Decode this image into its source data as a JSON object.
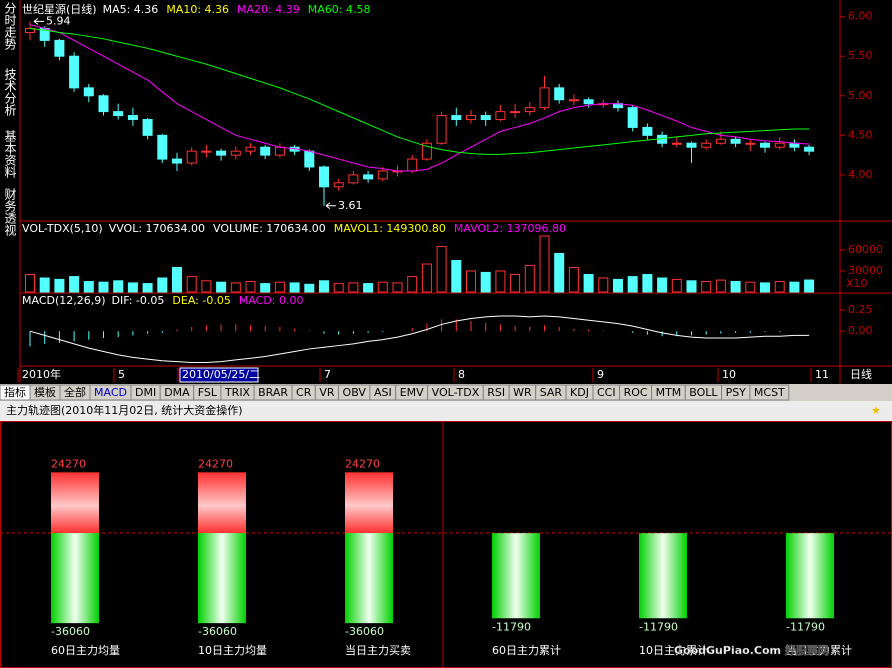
{
  "side_tabs": [
    "分时走势",
    "技术分析",
    "基本资料",
    "财务透视"
  ],
  "kline": {
    "title": "世纪星源(日线)",
    "indicators": [
      {
        "text": "MA5: 4.36",
        "color": "#ffffff"
      },
      {
        "text": "MA10: 4.36",
        "color": "#ffff00"
      },
      {
        "text": "MA20: 4.39",
        "color": "#ff00ff"
      },
      {
        "text": "MA60: 4.58",
        "color": "#00ff00"
      }
    ],
    "ylim": [
      3.43,
      6.16
    ],
    "yticks": [
      {
        "value": 6,
        "label": "6.00"
      },
      {
        "value": 5.5,
        "label": "5.50"
      },
      {
        "value": 5,
        "label": "5.00"
      },
      {
        "value": 4.5,
        "label": "4.50"
      },
      {
        "value": 4,
        "label": "4.00"
      }
    ],
    "high_mark": 5.94,
    "low_mark": 3.61,
    "up_color": "#ff3232",
    "down_color": "#54ffff",
    "candles": [
      [
        5.8,
        5.94,
        5.7,
        5.85
      ],
      [
        5.85,
        5.88,
        5.62,
        5.7
      ],
      [
        5.7,
        5.72,
        5.45,
        5.5
      ],
      [
        5.5,
        5.55,
        5.05,
        5.1
      ],
      [
        5.1,
        5.15,
        4.92,
        5.0
      ],
      [
        5.0,
        5.02,
        4.75,
        4.8
      ],
      [
        4.8,
        4.9,
        4.7,
        4.75
      ],
      [
        4.75,
        4.85,
        4.62,
        4.7
      ],
      [
        4.7,
        4.72,
        4.45,
        4.5
      ],
      [
        4.5,
        4.52,
        4.15,
        4.2
      ],
      [
        4.2,
        4.28,
        4.05,
        4.15
      ],
      [
        4.15,
        4.35,
        4.12,
        4.3
      ],
      [
        4.3,
        4.38,
        4.22,
        4.3
      ],
      [
        4.3,
        4.33,
        4.18,
        4.25
      ],
      [
        4.25,
        4.36,
        4.2,
        4.3
      ],
      [
        4.3,
        4.4,
        4.25,
        4.35
      ],
      [
        4.35,
        4.38,
        4.2,
        4.25
      ],
      [
        4.25,
        4.4,
        4.22,
        4.35
      ],
      [
        4.35,
        4.38,
        4.25,
        4.3
      ],
      [
        4.3,
        4.32,
        4.05,
        4.1
      ],
      [
        4.1,
        4.12,
        3.61,
        3.85
      ],
      [
        3.85,
        3.95,
        3.8,
        3.9
      ],
      [
        3.9,
        4.05,
        3.88,
        4.0
      ],
      [
        4.0,
        4.05,
        3.9,
        3.95
      ],
      [
        3.95,
        4.1,
        3.92,
        4.05
      ],
      [
        4.05,
        4.12,
        3.98,
        4.05
      ],
      [
        4.05,
        4.25,
        4.02,
        4.2
      ],
      [
        4.2,
        4.45,
        4.18,
        4.4
      ],
      [
        4.4,
        4.8,
        4.38,
        4.75
      ],
      [
        4.75,
        4.85,
        4.62,
        4.7
      ],
      [
        4.7,
        4.82,
        4.65,
        4.75
      ],
      [
        4.75,
        4.8,
        4.62,
        4.7
      ],
      [
        4.7,
        4.88,
        4.68,
        4.8
      ],
      [
        4.8,
        4.9,
        4.72,
        4.8
      ],
      [
        4.8,
        4.92,
        4.75,
        4.85
      ],
      [
        4.85,
        5.25,
        4.82,
        5.1
      ],
      [
        5.1,
        5.15,
        4.9,
        4.95
      ],
      [
        4.95,
        5.02,
        4.88,
        4.95
      ],
      [
        4.95,
        4.98,
        4.85,
        4.9
      ],
      [
        4.9,
        4.95,
        4.85,
        4.9
      ],
      [
        4.9,
        4.94,
        4.8,
        4.85
      ],
      [
        4.85,
        4.88,
        4.55,
        4.6
      ],
      [
        4.6,
        4.65,
        4.45,
        4.5
      ],
      [
        4.5,
        4.55,
        4.35,
        4.4
      ],
      [
        4.4,
        4.48,
        4.35,
        4.4
      ],
      [
        4.4,
        4.42,
        4.15,
        4.35
      ],
      [
        4.35,
        4.45,
        4.32,
        4.4
      ],
      [
        4.4,
        4.55,
        4.38,
        4.45
      ],
      [
        4.45,
        4.48,
        4.35,
        4.4
      ],
      [
        4.4,
        4.45,
        4.3,
        4.4
      ],
      [
        4.4,
        4.42,
        4.28,
        4.35
      ],
      [
        4.35,
        4.48,
        4.32,
        4.4
      ],
      [
        4.4,
        4.45,
        4.3,
        4.35
      ],
      [
        4.35,
        4.38,
        4.25,
        4.3
      ]
    ],
    "ma_lines": [
      {
        "color": "#ff00ff",
        "values": [
          5.9,
          5.85,
          5.8,
          5.7,
          5.6,
          5.5,
          5.4,
          5.3,
          5.2,
          5.05,
          4.9,
          4.8,
          4.7,
          4.6,
          4.5,
          4.45,
          4.4,
          4.35,
          4.33,
          4.3,
          4.25,
          4.2,
          4.15,
          4.1,
          4.08,
          4.05,
          4.05,
          4.07,
          4.15,
          4.25,
          4.35,
          4.45,
          4.55,
          4.6,
          4.65,
          4.72,
          4.8,
          4.85,
          4.88,
          4.9,
          4.9,
          4.88,
          4.82,
          4.75,
          4.68,
          4.6,
          4.55,
          4.5,
          4.48,
          4.45,
          4.43,
          4.42,
          4.4,
          4.39
        ]
      },
      {
        "color": "#00ff00",
        "values": [
          5.85,
          5.83,
          5.8,
          5.78,
          5.75,
          5.72,
          5.68,
          5.64,
          5.6,
          5.55,
          5.5,
          5.45,
          5.4,
          5.34,
          5.28,
          5.22,
          5.16,
          5.1,
          5.03,
          4.96,
          4.88,
          4.8,
          4.72,
          4.64,
          4.56,
          4.48,
          4.42,
          4.36,
          4.32,
          4.29,
          4.27,
          4.26,
          4.26,
          4.27,
          4.28,
          4.3,
          4.32,
          4.34,
          4.36,
          4.38,
          4.4,
          4.42,
          4.44,
          4.46,
          4.48,
          4.5,
          4.52,
          4.53,
          4.54,
          4.55,
          4.56,
          4.57,
          4.58,
          4.58
        ]
      }
    ]
  },
  "volume": {
    "title": "VOL-TDX(5,10)",
    "indicators": [
      {
        "text": "VVOL: 170634.00",
        "color": "#ffffff"
      },
      {
        "text": "VOLUME: 170634.00",
        "color": "#ffffff"
      },
      {
        "text": "MAVOL1: 149300.80",
        "color": "#ffff00"
      },
      {
        "text": "MAVOL2: 137096.80",
        "color": "#ff00ff"
      }
    ],
    "ylim": [
      0,
      100000
    ],
    "yticks": [
      60000,
      30000
    ],
    "multiplier": "X10",
    "values": [
      25000,
      20000,
      18000,
      22000,
      15000,
      14000,
      16000,
      13000,
      12000,
      20000,
      35000,
      22000,
      16000,
      14000,
      13000,
      15000,
      12000,
      14000,
      13000,
      11000,
      16000,
      12000,
      13000,
      12000,
      14000,
      13000,
      22000,
      40000,
      65000,
      45000,
      30000,
      28000,
      30000,
      25000,
      38000,
      80000,
      55000,
      35000,
      25000,
      20000,
      18000,
      22000,
      25000,
      20000,
      18000,
      16000,
      15000,
      17000,
      15000,
      14000,
      13000,
      15000,
      14000,
      17063
    ]
  },
  "macd": {
    "title": "MACD(12,26,9)",
    "indicators": [
      {
        "text": "DIF: -0.05",
        "color": "#ffffff"
      },
      {
        "text": "DEA: -0.05",
        "color": "#ffff00"
      },
      {
        "text": "MACD: 0.00",
        "color": "#ff00ff"
      }
    ],
    "ylim": [
      -0.4,
      0.44
    ],
    "yticks": [
      {
        "value": 0.25,
        "label": "0.25"
      },
      {
        "value": 0,
        "label": "0.00"
      }
    ],
    "hist": [
      -0.18,
      -0.15,
      -0.14,
      -0.12,
      -0.1,
      -0.08,
      -0.07,
      -0.05,
      -0.03,
      -0.02,
      0.02,
      0.05,
      0.07,
      0.08,
      0.08,
      0.07,
      0.06,
      0.05,
      0.03,
      0.01,
      -0.03,
      -0.04,
      -0.03,
      -0.02,
      -0.01,
      0.0,
      0.04,
      0.09,
      0.14,
      0.14,
      0.12,
      0.1,
      0.08,
      0.06,
      0.05,
      0.07,
      0.05,
      0.03,
      0.02,
      0.01,
      0.0,
      -0.02,
      -0.04,
      -0.06,
      -0.06,
      -0.05,
      -0.04,
      -0.03,
      -0.02,
      -0.02,
      -0.01,
      -0.01,
      0.0,
      0.0
    ],
    "dif": [
      0.0,
      -0.05,
      -0.1,
      -0.15,
      -0.2,
      -0.24,
      -0.28,
      -0.31,
      -0.33,
      -0.35,
      -0.36,
      -0.37,
      -0.37,
      -0.36,
      -0.34,
      -0.32,
      -0.3,
      -0.27,
      -0.24,
      -0.21,
      -0.19,
      -0.17,
      -0.15,
      -0.12,
      -0.1,
      -0.07,
      -0.03,
      0.02,
      0.08,
      0.12,
      0.15,
      0.17,
      0.18,
      0.18,
      0.17,
      0.18,
      0.17,
      0.15,
      0.13,
      0.11,
      0.09,
      0.06,
      0.02,
      -0.02,
      -0.05,
      -0.07,
      -0.08,
      -0.08,
      -0.08,
      -0.07,
      -0.06,
      -0.06,
      -0.05,
      -0.05
    ]
  },
  "date_axis": {
    "labels": [
      "2010年",
      "5",
      "2010/05/25/二",
      "7",
      "8",
      "9",
      "10",
      "11"
    ],
    "period": "日线"
  },
  "tabs": [
    "指标",
    "模板",
    "全部",
    "MACD",
    "DMI",
    "DMA",
    "FSL",
    "TRIX",
    "BRAR",
    "CR",
    "VR",
    "OBV",
    "ASI",
    "EMV",
    "VOL-TDX",
    "RSI",
    "WR",
    "SAR",
    "KDJ",
    "CCI",
    "ROC",
    "MTM",
    "BOLL",
    "PSY",
    "MCST"
  ],
  "main_force": {
    "title": "主力轨迹图(2010年11月02日, 统计大资金操作)",
    "groups": [
      {
        "ylim": [
          -42800,
          37200
        ],
        "bars": [
          {
            "label": "60日主力均量",
            "up": 24270,
            "down": -36060
          },
          {
            "label": "10日主力均量",
            "up": 24270,
            "down": -36060
          },
          {
            "label": "当日主力买卖",
            "up": 24270,
            "down": -36060
          }
        ]
      },
      {
        "ylim": [
          -14800,
          12900
        ],
        "bars": [
          {
            "label": "60日主力累计",
            "down": -11790
          },
          {
            "label": "10日主力累计",
            "down": -11790
          },
          {
            "label": "当日主力累计",
            "down": -11790
          }
        ]
      }
    ]
  },
  "watermark": "GoodGuPiao.Com 好股票网"
}
